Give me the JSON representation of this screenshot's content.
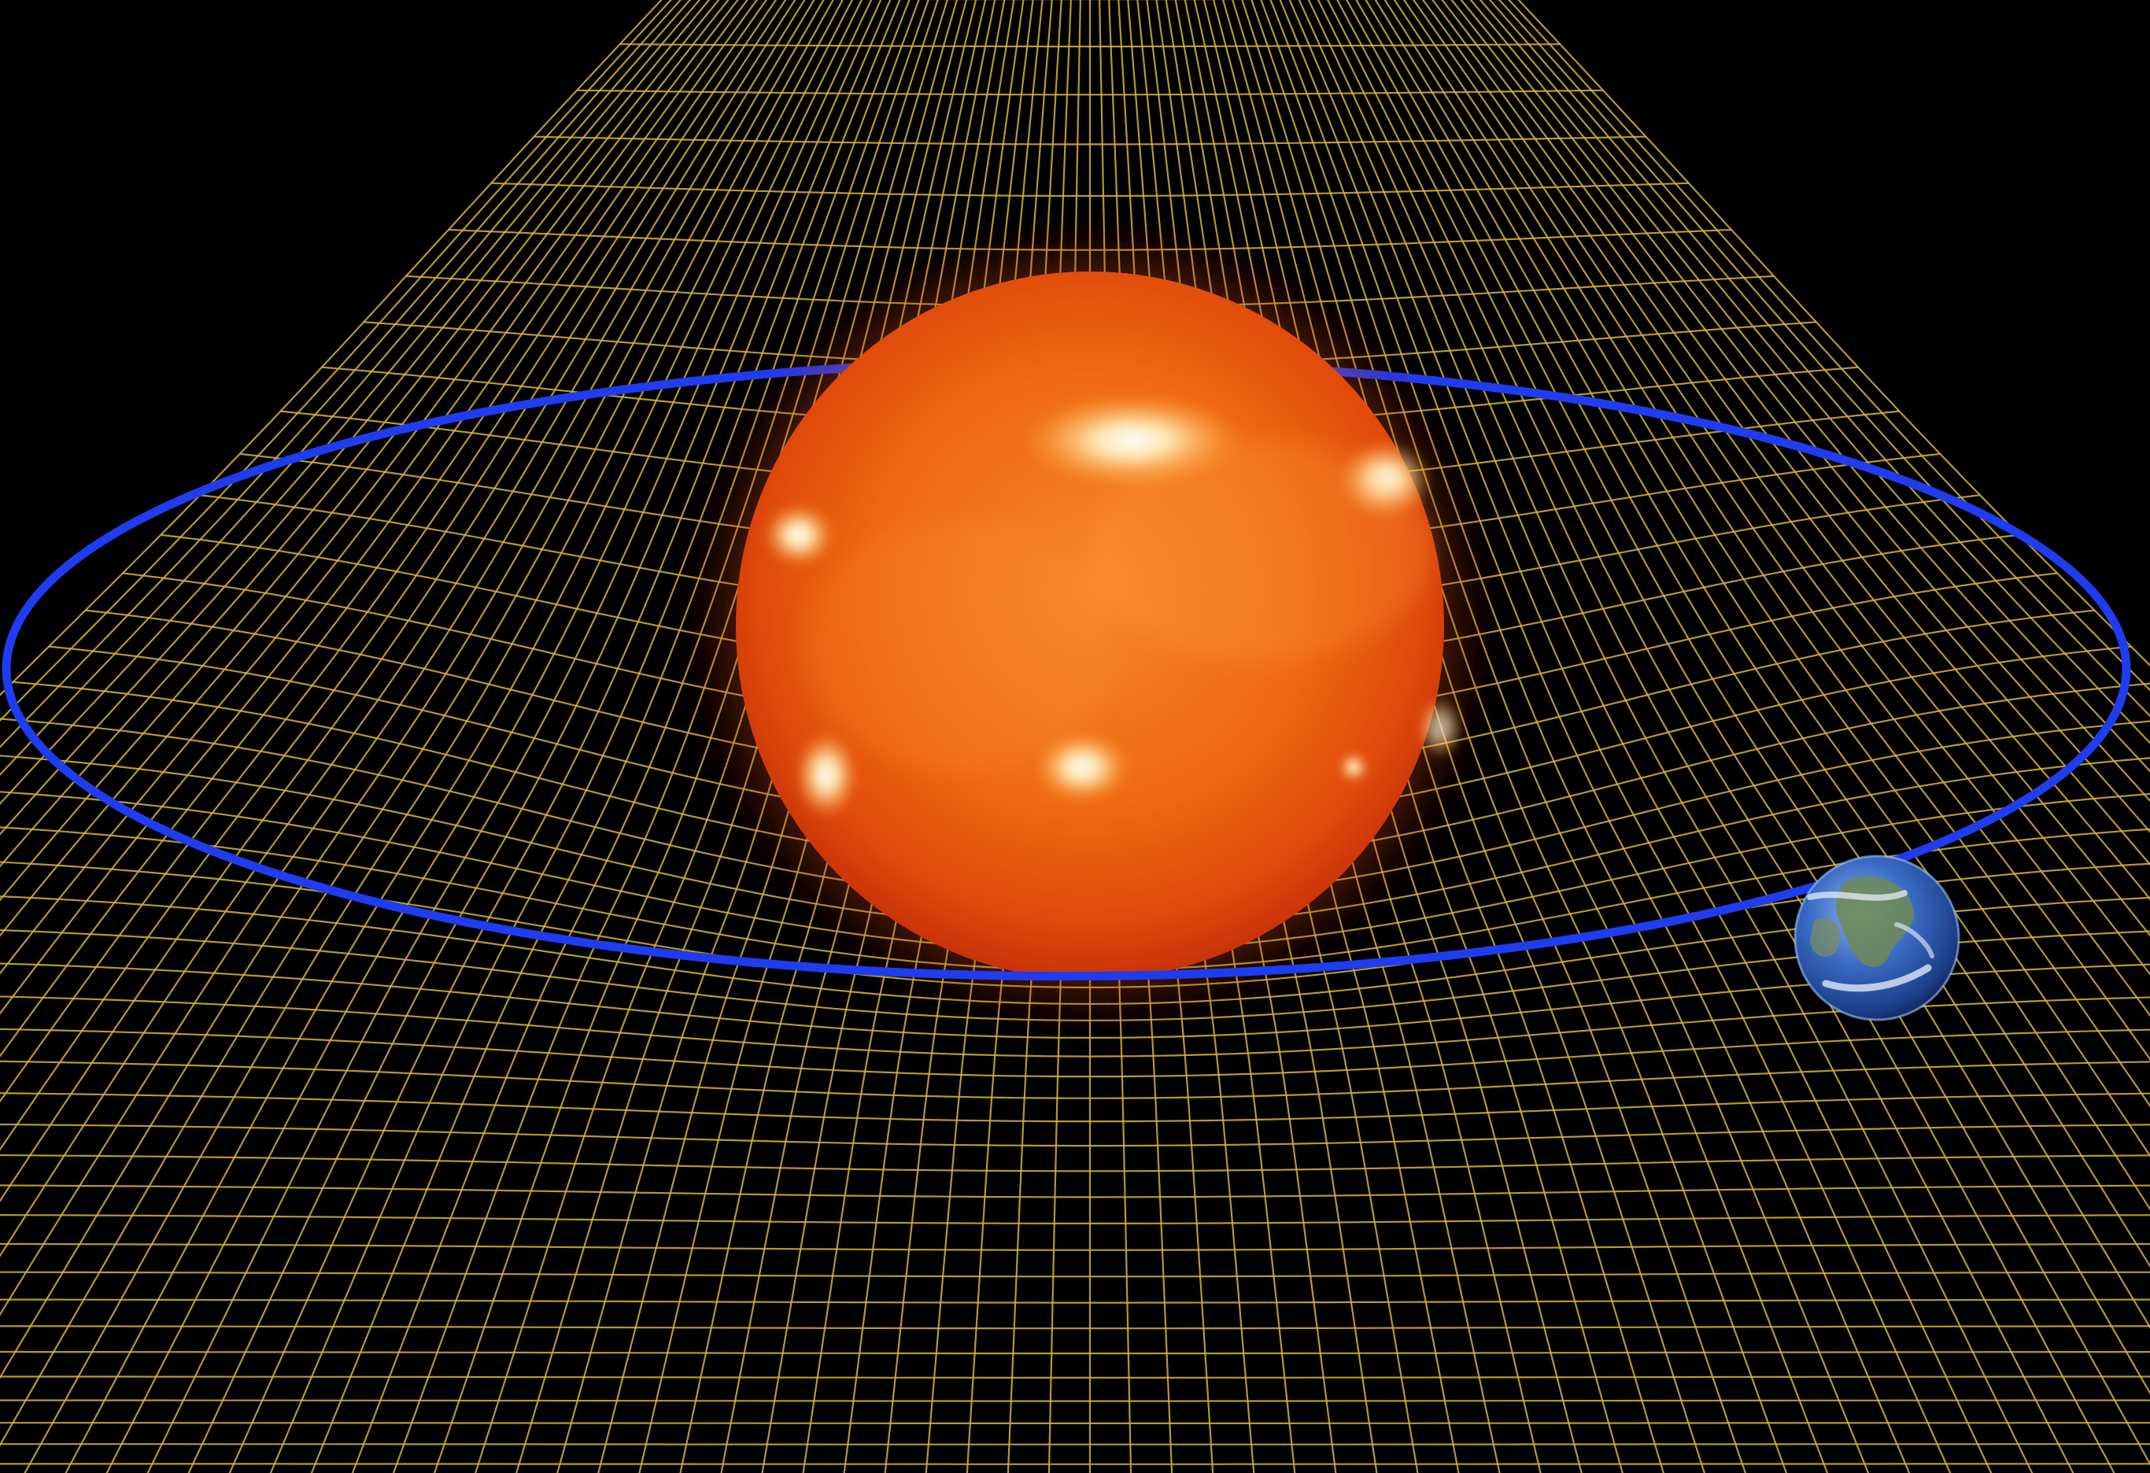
{
  "scene": {
    "colors": {
      "background": "#000000",
      "grid": "#d4b43a",
      "orbit": "#1f3cf0",
      "sun_core": "#f06a10",
      "sun_glow": "#ffb347",
      "sun_flare": "#fff3c8",
      "earth_ocean": "#2f5fb8",
      "earth_land": "#6f8a55",
      "earth_cloud": "#eef3ff"
    },
    "icons": [
      "sun-icon",
      "earth-icon"
    ]
  }
}
